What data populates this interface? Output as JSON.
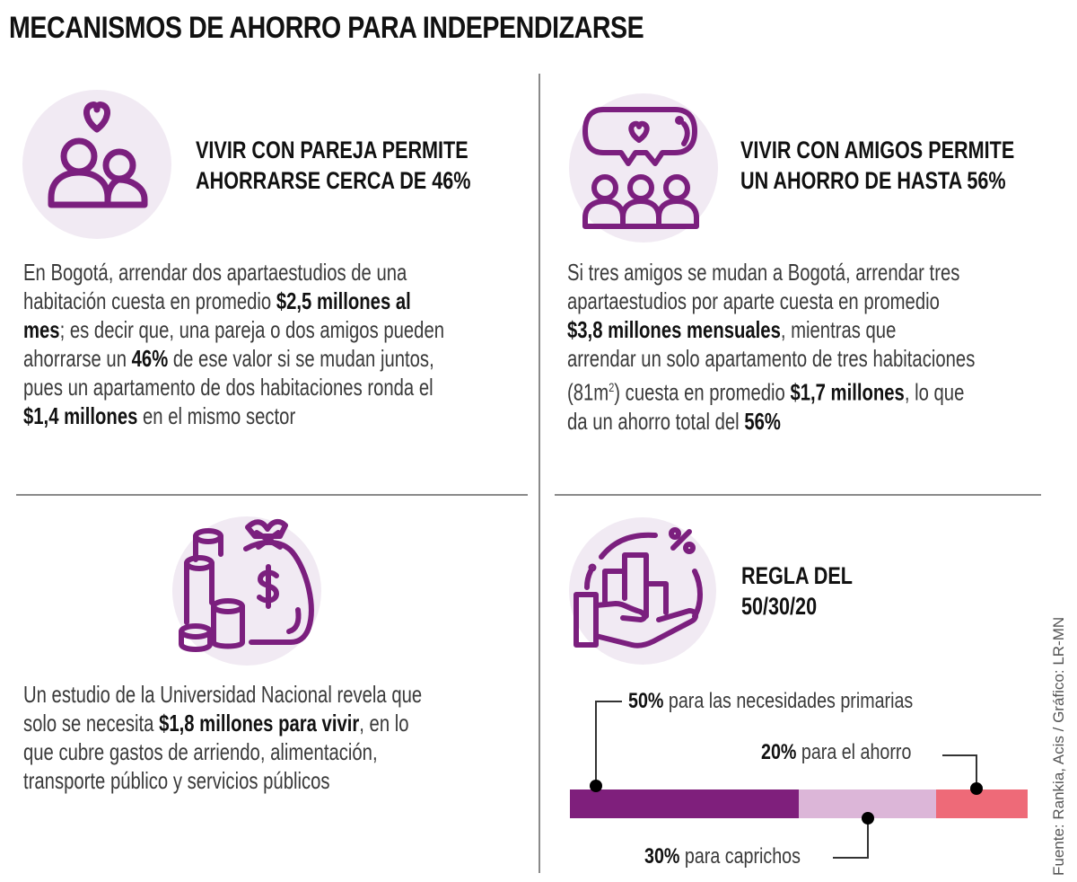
{
  "title": "MECANISMOS DE AHORRO PARA INDEPENDIZARSE",
  "colors": {
    "icon_purple": "#7b1f7e",
    "circle_fill": "#f1eaf3",
    "bar_primary": "#7f1f7c",
    "bar_caprichos": "#dcb6d8",
    "bar_ahorro": "#ee6a78"
  },
  "sections": {
    "pareja": {
      "icon": "couple-heart-icon",
      "heading_line1": "VIVIR CON PAREJA PERMITE",
      "heading_line2": "AHORRARSE CERCA DE 46%",
      "p1": "En Bogotá, arrendar dos apartaestudios de una",
      "p2a": "habitación cuesta en promedio ",
      "p2b": "$2,5 millones al",
      "p3a": "mes",
      "p3b": "; es decir que, una pareja o dos amigos pueden",
      "p4a": "ahorrarse un ",
      "p4b": "46%",
      "p4c": " de ese valor si se mudan juntos,",
      "p5": "pues un apartamento de dos habitaciones ronda el",
      "p6a": "$1,4 millones",
      "p6b": " en el mismo sector"
    },
    "amigos": {
      "icon": "friends-chat-icon",
      "heading_line1": "VIVIR CON AMIGOS PERMITE",
      "heading_line2": "UN AHORRO DE HASTA 56%",
      "p1": "Si tres amigos se mudan a Bogotá, arrendar tres",
      "p2": "apartaestudios por aparte cuesta en promedio",
      "p3a": "$3,8 millones mensuales",
      "p3b": ", mientras que",
      "p4": "arrendar un solo apartamento de tres habitaciones",
      "p5a": "(81m",
      "p5sup": "2",
      "p5b": ") cuesta en promedio ",
      "p5c": "$1,7 millones",
      "p5d": ", lo que",
      "p6a": "da un ahorro total del ",
      "p6b": "56%"
    },
    "estudio": {
      "icon": "money-bag-icon",
      "p1": "Un estudio de la Universidad Nacional revela que",
      "p2a": "solo se necesita ",
      "p2b": "$1,8 millones para vivir",
      "p2c": ", en lo",
      "p3": "que cubre gastos de arriendo, alimentación,",
      "p4": "transporte público y servicios públicos"
    },
    "regla": {
      "icon": "hand-chart-percent-icon",
      "heading_line1": "REGLA DEL",
      "heading_line2": "50/30/20"
    }
  },
  "chart_data": {
    "type": "bar",
    "orientation": "horizontal-stacked",
    "title": "REGLA DEL 50/30/20",
    "categories": [
      "para las necesidades primarias",
      "para caprichos",
      "para el ahorro"
    ],
    "values": [
      50,
      30,
      20
    ],
    "value_labels": [
      "50%",
      "30%",
      "20%"
    ],
    "colors": [
      "#7f1f7c",
      "#dcb6d8",
      "#ee6a78"
    ],
    "xlim": [
      0,
      100
    ]
  },
  "source": "Fuente: Rankia, Acis / Gráfico: LR-MN"
}
